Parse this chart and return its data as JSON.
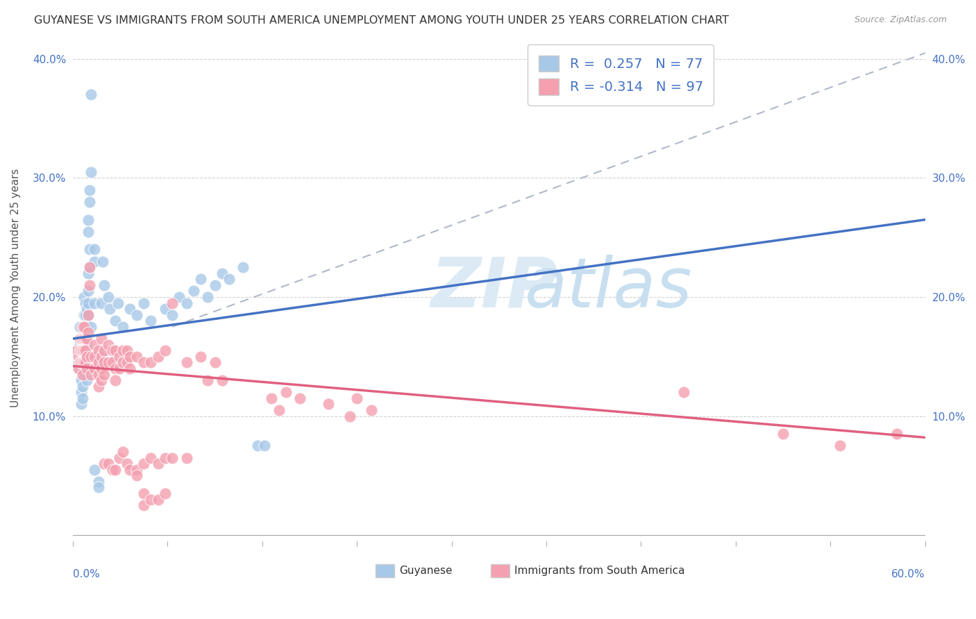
{
  "title": "GUYANESE VS IMMIGRANTS FROM SOUTH AMERICA UNEMPLOYMENT AMONG YOUTH UNDER 25 YEARS CORRELATION CHART",
  "source": "Source: ZipAtlas.com",
  "ylabel": "Unemployment Among Youth under 25 years",
  "xlim": [
    0.0,
    0.6
  ],
  "ylim": [
    -0.005,
    0.42
  ],
  "yticks": [
    0.0,
    0.1,
    0.2,
    0.3,
    0.4
  ],
  "blue_R": 0.257,
  "blue_N": 77,
  "pink_R": -0.314,
  "pink_N": 97,
  "blue_color": "#a8c8e8",
  "pink_color": "#f4a0b0",
  "blue_line_color": "#4472c4",
  "pink_line_color": "#e06080",
  "dash_line_color": "#b0b8c8",
  "blue_line_x": [
    0.0,
    0.6
  ],
  "blue_line_y": [
    0.165,
    0.265
  ],
  "pink_line_x": [
    0.0,
    0.6
  ],
  "pink_line_y": [
    0.142,
    0.082
  ],
  "dash_line_x": [
    0.07,
    0.6
  ],
  "dash_line_y": [
    0.175,
    0.405
  ],
  "blue_scatter": [
    [
      0.003,
      0.155
    ],
    [
      0.004,
      0.145
    ],
    [
      0.005,
      0.175
    ],
    [
      0.005,
      0.14
    ],
    [
      0.005,
      0.16
    ],
    [
      0.006,
      0.15
    ],
    [
      0.006,
      0.13
    ],
    [
      0.006,
      0.12
    ],
    [
      0.006,
      0.11
    ],
    [
      0.007,
      0.165
    ],
    [
      0.007,
      0.145
    ],
    [
      0.007,
      0.125
    ],
    [
      0.007,
      0.115
    ],
    [
      0.008,
      0.2
    ],
    [
      0.008,
      0.185
    ],
    [
      0.008,
      0.175
    ],
    [
      0.008,
      0.16
    ],
    [
      0.008,
      0.15
    ],
    [
      0.008,
      0.14
    ],
    [
      0.009,
      0.195
    ],
    [
      0.009,
      0.185
    ],
    [
      0.009,
      0.17
    ],
    [
      0.009,
      0.155
    ],
    [
      0.009,
      0.145
    ],
    [
      0.009,
      0.135
    ],
    [
      0.01,
      0.19
    ],
    [
      0.01,
      0.175
    ],
    [
      0.01,
      0.16
    ],
    [
      0.01,
      0.15
    ],
    [
      0.01,
      0.14
    ],
    [
      0.01,
      0.13
    ],
    [
      0.011,
      0.265
    ],
    [
      0.011,
      0.255
    ],
    [
      0.011,
      0.22
    ],
    [
      0.011,
      0.205
    ],
    [
      0.011,
      0.195
    ],
    [
      0.011,
      0.185
    ],
    [
      0.012,
      0.29
    ],
    [
      0.012,
      0.28
    ],
    [
      0.012,
      0.24
    ],
    [
      0.012,
      0.225
    ],
    [
      0.013,
      0.37
    ],
    [
      0.013,
      0.305
    ],
    [
      0.013,
      0.175
    ],
    [
      0.015,
      0.24
    ],
    [
      0.015,
      0.23
    ],
    [
      0.015,
      0.195
    ],
    [
      0.015,
      0.055
    ],
    [
      0.018,
      0.045
    ],
    [
      0.018,
      0.04
    ],
    [
      0.02,
      0.195
    ],
    [
      0.021,
      0.23
    ],
    [
      0.022,
      0.21
    ],
    [
      0.025,
      0.2
    ],
    [
      0.026,
      0.19
    ],
    [
      0.03,
      0.18
    ],
    [
      0.032,
      0.195
    ],
    [
      0.035,
      0.175
    ],
    [
      0.04,
      0.19
    ],
    [
      0.045,
      0.185
    ],
    [
      0.05,
      0.195
    ],
    [
      0.055,
      0.18
    ],
    [
      0.065,
      0.19
    ],
    [
      0.07,
      0.185
    ],
    [
      0.075,
      0.2
    ],
    [
      0.08,
      0.195
    ],
    [
      0.085,
      0.205
    ],
    [
      0.09,
      0.215
    ],
    [
      0.095,
      0.2
    ],
    [
      0.1,
      0.21
    ],
    [
      0.105,
      0.22
    ],
    [
      0.11,
      0.215
    ],
    [
      0.12,
      0.225
    ],
    [
      0.13,
      0.075
    ],
    [
      0.135,
      0.075
    ]
  ],
  "pink_scatter": [
    [
      0.003,
      0.155
    ],
    [
      0.004,
      0.15
    ],
    [
      0.004,
      0.14
    ],
    [
      0.005,
      0.165
    ],
    [
      0.005,
      0.155
    ],
    [
      0.005,
      0.145
    ],
    [
      0.006,
      0.165
    ],
    [
      0.006,
      0.155
    ],
    [
      0.006,
      0.145
    ],
    [
      0.007,
      0.175
    ],
    [
      0.007,
      0.165
    ],
    [
      0.007,
      0.155
    ],
    [
      0.007,
      0.145
    ],
    [
      0.007,
      0.135
    ],
    [
      0.008,
      0.175
    ],
    [
      0.008,
      0.165
    ],
    [
      0.008,
      0.155
    ],
    [
      0.008,
      0.145
    ],
    [
      0.009,
      0.165
    ],
    [
      0.009,
      0.155
    ],
    [
      0.009,
      0.145
    ],
    [
      0.01,
      0.165
    ],
    [
      0.01,
      0.15
    ],
    [
      0.01,
      0.14
    ],
    [
      0.011,
      0.185
    ],
    [
      0.011,
      0.17
    ],
    [
      0.012,
      0.225
    ],
    [
      0.012,
      0.21
    ],
    [
      0.013,
      0.15
    ],
    [
      0.013,
      0.135
    ],
    [
      0.015,
      0.16
    ],
    [
      0.015,
      0.15
    ],
    [
      0.015,
      0.14
    ],
    [
      0.018,
      0.155
    ],
    [
      0.018,
      0.145
    ],
    [
      0.018,
      0.135
    ],
    [
      0.018,
      0.125
    ],
    [
      0.02,
      0.165
    ],
    [
      0.02,
      0.15
    ],
    [
      0.02,
      0.14
    ],
    [
      0.02,
      0.13
    ],
    [
      0.022,
      0.155
    ],
    [
      0.022,
      0.145
    ],
    [
      0.022,
      0.135
    ],
    [
      0.022,
      0.06
    ],
    [
      0.025,
      0.16
    ],
    [
      0.025,
      0.145
    ],
    [
      0.025,
      0.06
    ],
    [
      0.028,
      0.155
    ],
    [
      0.028,
      0.145
    ],
    [
      0.028,
      0.055
    ],
    [
      0.03,
      0.155
    ],
    [
      0.03,
      0.14
    ],
    [
      0.03,
      0.13
    ],
    [
      0.03,
      0.055
    ],
    [
      0.033,
      0.15
    ],
    [
      0.033,
      0.14
    ],
    [
      0.033,
      0.065
    ],
    [
      0.035,
      0.155
    ],
    [
      0.035,
      0.145
    ],
    [
      0.035,
      0.07
    ],
    [
      0.038,
      0.155
    ],
    [
      0.038,
      0.145
    ],
    [
      0.038,
      0.06
    ],
    [
      0.04,
      0.15
    ],
    [
      0.04,
      0.14
    ],
    [
      0.04,
      0.055
    ],
    [
      0.045,
      0.15
    ],
    [
      0.045,
      0.055
    ],
    [
      0.045,
      0.05
    ],
    [
      0.05,
      0.145
    ],
    [
      0.05,
      0.06
    ],
    [
      0.05,
      0.035
    ],
    [
      0.05,
      0.025
    ],
    [
      0.055,
      0.145
    ],
    [
      0.055,
      0.065
    ],
    [
      0.055,
      0.03
    ],
    [
      0.06,
      0.15
    ],
    [
      0.06,
      0.06
    ],
    [
      0.06,
      0.03
    ],
    [
      0.065,
      0.155
    ],
    [
      0.065,
      0.065
    ],
    [
      0.065,
      0.035
    ],
    [
      0.07,
      0.195
    ],
    [
      0.07,
      0.065
    ],
    [
      0.08,
      0.145
    ],
    [
      0.08,
      0.065
    ],
    [
      0.09,
      0.15
    ],
    [
      0.095,
      0.13
    ],
    [
      0.1,
      0.145
    ],
    [
      0.105,
      0.13
    ],
    [
      0.14,
      0.115
    ],
    [
      0.145,
      0.105
    ],
    [
      0.15,
      0.12
    ],
    [
      0.16,
      0.115
    ],
    [
      0.18,
      0.11
    ],
    [
      0.195,
      0.1
    ],
    [
      0.2,
      0.115
    ],
    [
      0.21,
      0.105
    ],
    [
      0.43,
      0.12
    ],
    [
      0.5,
      0.085
    ],
    [
      0.54,
      0.075
    ],
    [
      0.58,
      0.085
    ]
  ]
}
